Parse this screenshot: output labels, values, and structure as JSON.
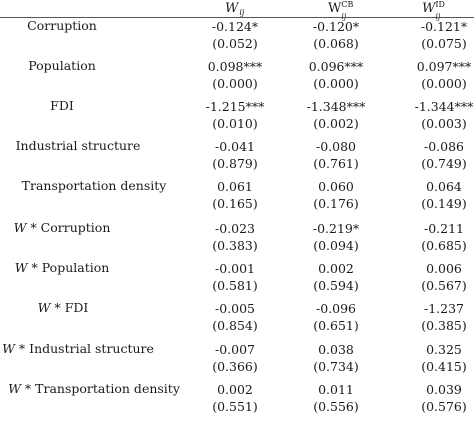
{
  "headers": [
    {
      "base": "W",
      "sub": "ij",
      "sup": ""
    },
    {
      "base": "W",
      "sub": "ij",
      "sup": "CB"
    },
    {
      "base": "W",
      "sub": "ij",
      "sup": "ID"
    }
  ],
  "rows": [
    {
      "prefix": "",
      "label": "Corruption",
      "values": [
        "-0.124*",
        "-0.120*",
        "-0.121*"
      ],
      "pvalues": [
        "(0.052)",
        "(0.068)",
        "(0.075)"
      ]
    },
    {
      "prefix": "",
      "label": "Population",
      "values": [
        "0.098***",
        "0.096***",
        "0.097***"
      ],
      "pvalues": [
        "(0.000)",
        "(0.000)",
        "(0.000)"
      ]
    },
    {
      "prefix": "",
      "label": "FDI",
      "values": [
        "-1.215***",
        "-1.348***",
        "-1.344***"
      ],
      "pvalues": [
        "(0.010)",
        "(0.002)",
        "(0.003)"
      ]
    },
    {
      "prefix": "",
      "label": "Industrial structure",
      "values": [
        "-0.041",
        "-0.080",
        "-0.086"
      ],
      "pvalues": [
        "(0.879)",
        "(0.761)",
        "(0.749)"
      ]
    },
    {
      "prefix": "",
      "label": "Transportation density",
      "values": [
        "0.061",
        "0.060",
        "0.064"
      ],
      "pvalues": [
        "(0.165)",
        "(0.176)",
        "(0.149)"
      ]
    },
    {
      "prefix": "W",
      "label": " * Corruption",
      "values": [
        "-0.023",
        "-0.219*",
        "-0.211"
      ],
      "pvalues": [
        "(0.383)",
        "(0.094)",
        "(0.685)"
      ]
    },
    {
      "prefix": "W",
      "label": " * Population",
      "values": [
        "-0.001",
        "0.002",
        "0.006"
      ],
      "pvalues": [
        "(0.581)",
        "(0.594)",
        "(0.567)"
      ]
    },
    {
      "prefix": "W",
      "label": " * FDI",
      "values": [
        "-0.005",
        "-0.096",
        "-1.237"
      ],
      "pvalues": [
        "(0.854)",
        "(0.651)",
        "(0.385)"
      ]
    },
    {
      "prefix": "W",
      "label": " * Industrial structure",
      "values": [
        "-0.007",
        "0.038",
        "0.325"
      ],
      "pvalues": [
        "(0.366)",
        "(0.734)",
        "(0.415)"
      ]
    },
    {
      "prefix": "W",
      "label": " * Transportation density",
      "values": [
        "0.002",
        "0.011",
        "0.039"
      ],
      "pvalues": [
        "(0.551)",
        "(0.556)",
        "(0.576)"
      ]
    }
  ]
}
